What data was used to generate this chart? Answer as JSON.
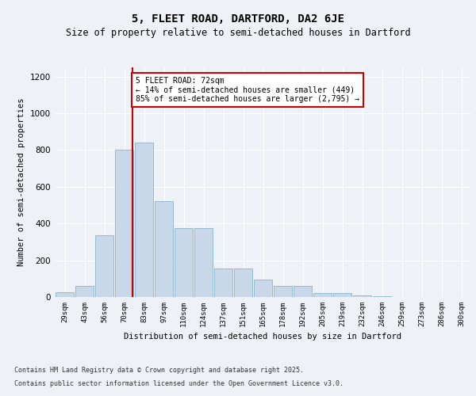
{
  "title": "5, FLEET ROAD, DARTFORD, DA2 6JE",
  "subtitle": "Size of property relative to semi-detached houses in Dartford",
  "xlabel": "Distribution of semi-detached houses by size in Dartford",
  "ylabel": "Number of semi-detached properties",
  "bar_labels": [
    "29sqm",
    "43sqm",
    "56sqm",
    "70sqm",
    "83sqm",
    "97sqm",
    "110sqm",
    "124sqm",
    "137sqm",
    "151sqm",
    "165sqm",
    "178sqm",
    "192sqm",
    "205sqm",
    "219sqm",
    "232sqm",
    "246sqm",
    "259sqm",
    "273sqm",
    "286sqm",
    "300sqm"
  ],
  "bar_values": [
    25,
    60,
    335,
    800,
    840,
    520,
    375,
    375,
    155,
    155,
    95,
    60,
    60,
    20,
    20,
    10,
    5,
    2,
    1,
    0,
    0
  ],
  "bar_color": "#c8d8e8",
  "bar_edgecolor": "#8ab4cc",
  "pct_smaller": 14,
  "pct_larger": 85,
  "count_smaller": 449,
  "count_larger": 2795,
  "annotation_box_color": "#cc0000",
  "ylim": [
    0,
    1250
  ],
  "yticks": [
    0,
    200,
    400,
    600,
    800,
    1000,
    1200
  ],
  "background_color": "#eef2f7",
  "footer_line1": "Contains HM Land Registry data © Crown copyright and database right 2025.",
  "footer_line2": "Contains public sector information licensed under the Open Government Licence v3.0."
}
